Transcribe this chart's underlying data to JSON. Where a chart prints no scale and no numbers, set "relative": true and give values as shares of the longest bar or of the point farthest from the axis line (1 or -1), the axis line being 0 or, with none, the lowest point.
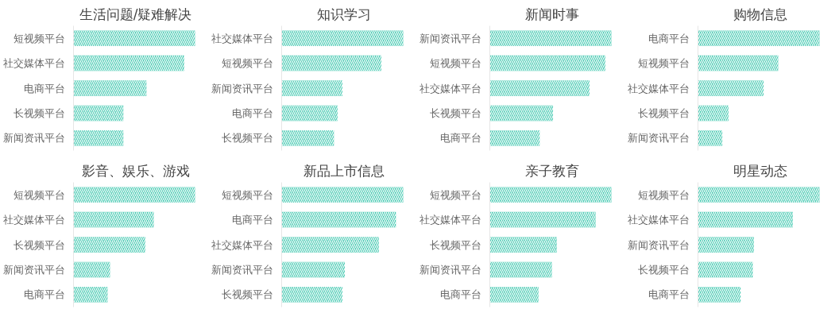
{
  "chart_data": [
    {
      "type": "bar",
      "orientation": "horizontal",
      "relative": true,
      "title": "生活问题/疑难解决",
      "categories": [
        "短视频平台",
        "社交媒体平台",
        "电商平台",
        "长视频平台",
        "新闻资讯平台"
      ],
      "values": [
        1,
        0.91,
        0.6,
        0.41,
        0.41
      ],
      "color": "#45c9b1"
    },
    {
      "type": "bar",
      "orientation": "horizontal",
      "relative": true,
      "title": "知识学习",
      "categories": [
        "社交媒体平台",
        "短视频平台",
        "新闻资讯平台",
        "电商平台",
        "长视频平台"
      ],
      "values": [
        1,
        0.82,
        0.5,
        0.46,
        0.43
      ],
      "color": "#45c9b1"
    },
    {
      "type": "bar",
      "orientation": "horizontal",
      "relative": true,
      "title": "新闻时事",
      "categories": [
        "新闻资讯平台",
        "短视频平台",
        "社交媒体平台",
        "长视频平台",
        "电商平台"
      ],
      "values": [
        1,
        0.95,
        0.82,
        0.52,
        0.41
      ],
      "color": "#45c9b1"
    },
    {
      "type": "bar",
      "orientation": "horizontal",
      "relative": true,
      "title": "购物信息",
      "categories": [
        "电商平台",
        "短视频平台",
        "社交媒体平台",
        "长视频平台",
        "新闻资讯平台"
      ],
      "values": [
        1,
        0.66,
        0.54,
        0.25,
        0.2
      ],
      "color": "#45c9b1"
    },
    {
      "type": "bar",
      "orientation": "horizontal",
      "relative": true,
      "title": "影音、娱乐、游戏",
      "categories": [
        "短视频平台",
        "社交媒体平台",
        "长视频平台",
        "新闻资讯平台",
        "电商平台"
      ],
      "values": [
        1,
        0.66,
        0.59,
        0.3,
        0.28
      ],
      "color": "#45c9b1"
    },
    {
      "type": "bar",
      "orientation": "horizontal",
      "relative": true,
      "title": "新品上市信息",
      "categories": [
        "短视频平台",
        "电商平台",
        "社交媒体平台",
        "新闻资讯平台",
        "长视频平台"
      ],
      "values": [
        1,
        0.94,
        0.8,
        0.52,
        0.5
      ],
      "color": "#45c9b1"
    },
    {
      "type": "bar",
      "orientation": "horizontal",
      "relative": true,
      "title": "亲子教育",
      "categories": [
        "短视频平台",
        "社交媒体平台",
        "长视频平台",
        "新闻资讯平台",
        "电商平台"
      ],
      "values": [
        1,
        0.87,
        0.55,
        0.51,
        0.4
      ],
      "color": "#45c9b1"
    },
    {
      "type": "bar",
      "orientation": "horizontal",
      "relative": true,
      "title": "明星动态",
      "categories": [
        "短视频平台",
        "社交媒体平台",
        "新闻资讯平台",
        "长视频平台",
        "电商平台"
      ],
      "values": [
        1,
        0.78,
        0.46,
        0.45,
        0.35
      ],
      "color": "#45c9b1"
    }
  ]
}
